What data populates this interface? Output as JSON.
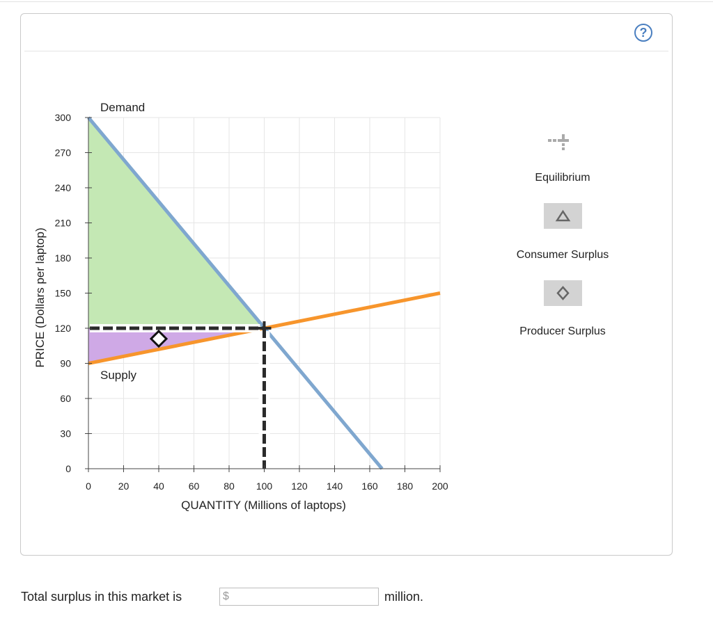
{
  "help": {
    "label": "?"
  },
  "legend": {
    "equilibrium": {
      "label": "Equilibrium",
      "icon": "plus-icon",
      "color": "#2b2b2b"
    },
    "consumer_surplus": {
      "label": "Consumer Surplus",
      "icon": "triangle-icon",
      "color": "#2b2b2b"
    },
    "producer_surplus": {
      "label": "Producer Surplus",
      "icon": "diamond-icon",
      "color": "#2b2b2b"
    }
  },
  "question": {
    "prefix_text": "Total surplus in this market is",
    "currency": "$",
    "value": "",
    "suffix_text": "million."
  },
  "chart_data": {
    "type": "line",
    "xlabel": "QUANTITY (Millions of laptops)",
    "ylabel": "PRICE (Dollars per laptop)",
    "xlim": [
      0,
      200
    ],
    "ylim": [
      0,
      300
    ],
    "xticks": [
      0,
      20,
      40,
      60,
      80,
      100,
      120,
      140,
      160,
      180,
      200
    ],
    "yticks": [
      0,
      30,
      60,
      90,
      120,
      150,
      180,
      210,
      240,
      270,
      300
    ],
    "grid": true,
    "series": [
      {
        "name": "Demand",
        "color": "#7fa7cf",
        "points": [
          [
            0,
            300
          ],
          [
            167,
            0
          ]
        ]
      },
      {
        "name": "Supply",
        "color": "#f7952c",
        "points": [
          [
            0,
            90
          ],
          [
            200,
            150
          ]
        ]
      }
    ],
    "equilibrium": {
      "x": 100,
      "y": 120
    },
    "consumer_surplus_area": {
      "color": "#c4e8b4",
      "points": [
        [
          0,
          300
        ],
        [
          100,
          120
        ],
        [
          0,
          120
        ]
      ]
    },
    "producer_surplus_area": {
      "color": "#cfa9e6",
      "points": [
        [
          0,
          120
        ],
        [
          100,
          120
        ],
        [
          0,
          90
        ]
      ]
    },
    "producer_surplus_marker": {
      "x": 40,
      "y": 111
    }
  }
}
